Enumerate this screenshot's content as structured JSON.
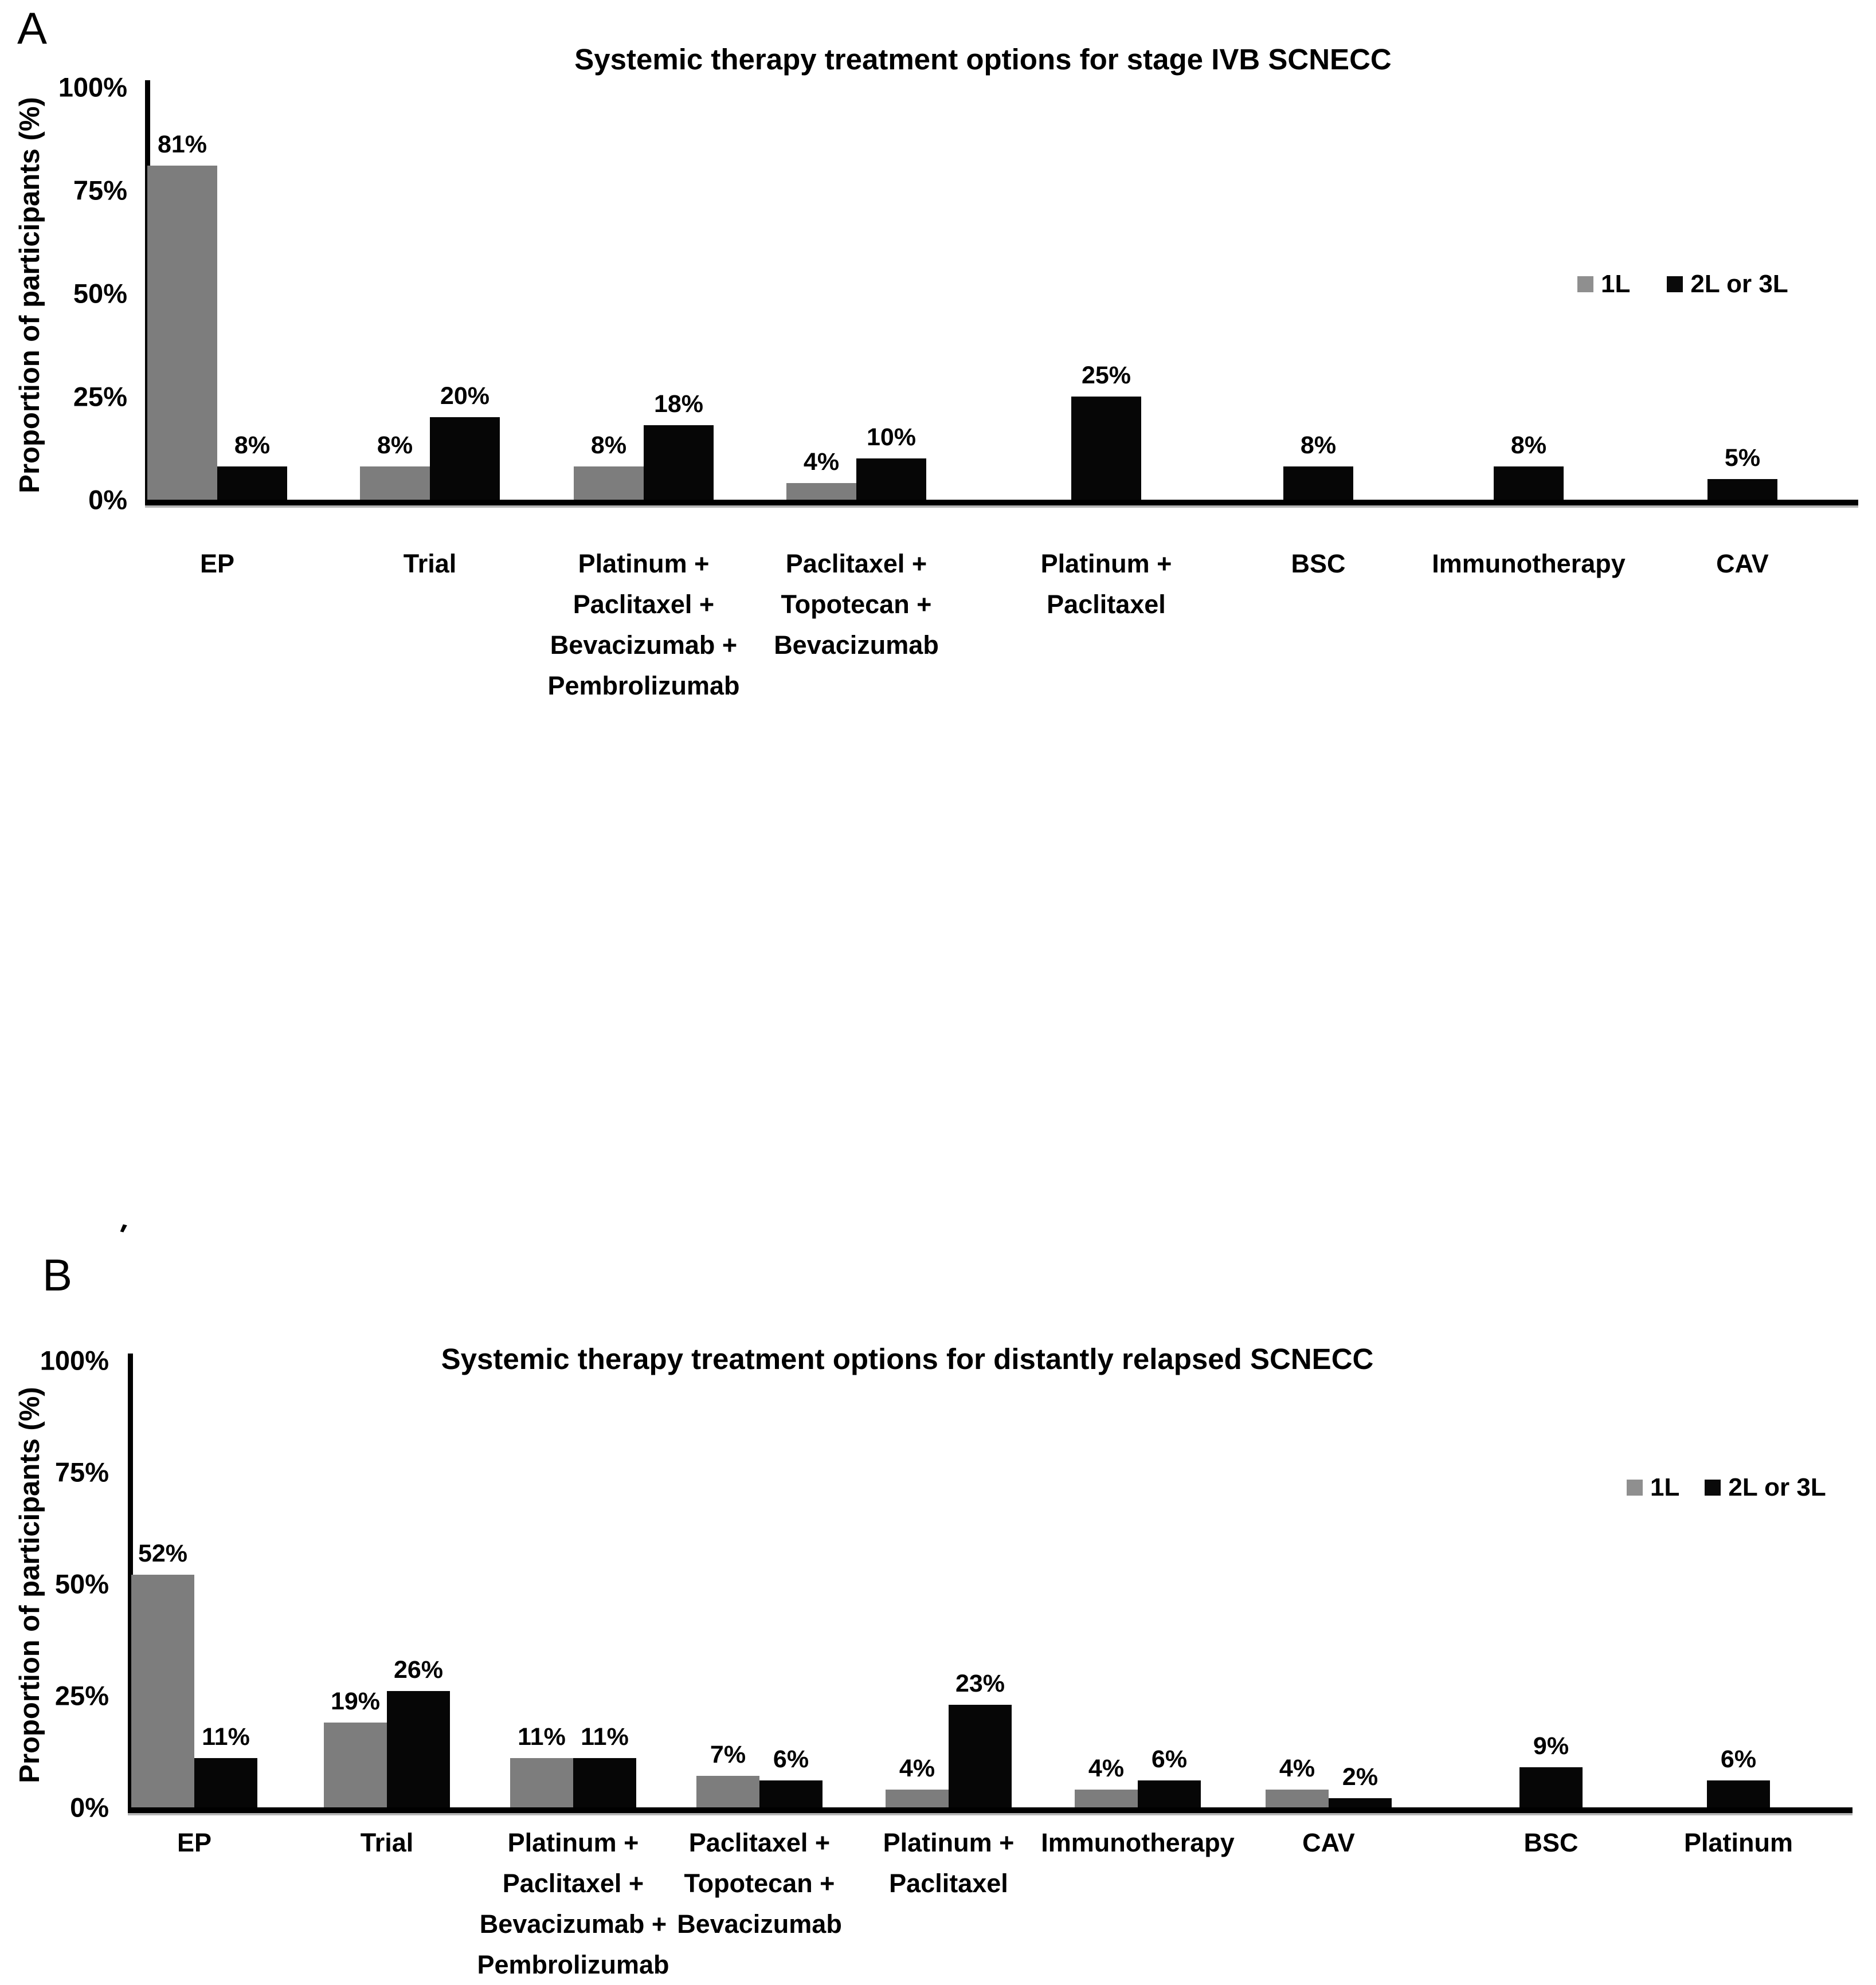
{
  "stray_mark": "'",
  "value_suffix": "%",
  "colors": {
    "bar_gray": "#7d7d7d",
    "bar_black": "#060606",
    "legend_gray": "#8f8f8f",
    "legend_black": "#0a0a0a"
  },
  "chart_data": [
    {
      "type": "bar",
      "panel_letter": "A",
      "title": "Systemic therapy treatment options for stage IVB SCNECC",
      "ylabel": "Proportion of participants (%)",
      "ylim": [
        0,
        100
      ],
      "yticks": [
        "100%",
        "75%",
        "50%",
        "25%",
        "0%"
      ],
      "grid": false,
      "legend_position": "right",
      "legend": [
        "1L",
        "2L or 3L"
      ],
      "categories": [
        [
          "EP"
        ],
        [
          "Trial"
        ],
        [
          "Platinum +",
          "Paclitaxel +",
          "Bevacizumab +",
          "Pembrolizumab"
        ],
        [
          "Paclitaxel +",
          "Topotecan +",
          "Bevacizumab"
        ],
        [
          "Platinum +",
          "Paclitaxel"
        ],
        [
          "BSC"
        ],
        [
          "Immunotherapy"
        ],
        [
          "CAV"
        ]
      ],
      "series": [
        {
          "name": "1L",
          "values": [
            81,
            8,
            8,
            4,
            null,
            null,
            null,
            null
          ]
        },
        {
          "name": "2L or 3L",
          "values": [
            8,
            20,
            18,
            10,
            25,
            8,
            8,
            5
          ]
        }
      ]
    },
    {
      "type": "bar",
      "panel_letter": "B",
      "title": "Systemic therapy treatment options for distantly relapsed SCNECC",
      "ylabel": "Proportion of participants (%)",
      "ylim": [
        0,
        100
      ],
      "yticks": [
        "100%",
        "75%",
        "50%",
        "25%",
        "0%"
      ],
      "grid": false,
      "legend_position": "right",
      "legend": [
        "1L",
        "2L or 3L"
      ],
      "categories": [
        [
          "EP"
        ],
        [
          "Trial"
        ],
        [
          "Platinum +",
          "Paclitaxel +",
          "Bevacizumab +",
          "Pembrolizumab"
        ],
        [
          "Paclitaxel +",
          "Topotecan +",
          "Bevacizumab"
        ],
        [
          "Platinum +",
          "Paclitaxel"
        ],
        [
          "Immunotherapy"
        ],
        [
          "CAV"
        ],
        [
          "BSC"
        ],
        [
          "Platinum"
        ]
      ],
      "series": [
        {
          "name": "1L",
          "values": [
            52,
            19,
            11,
            7,
            4,
            4,
            4,
            null,
            null
          ]
        },
        {
          "name": "2L or 3L",
          "values": [
            11,
            26,
            11,
            6,
            23,
            6,
            2,
            9,
            6
          ]
        }
      ]
    }
  ]
}
